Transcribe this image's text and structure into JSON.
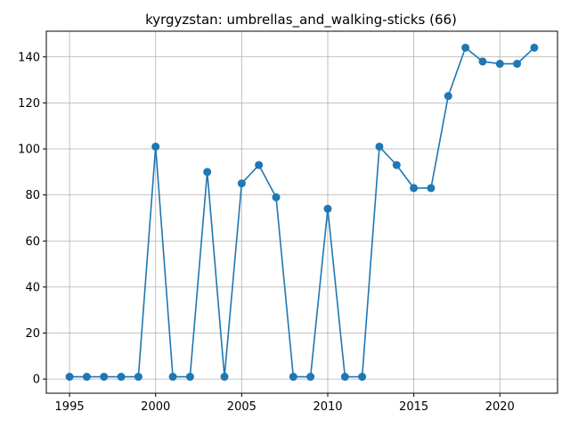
{
  "chart_data": {
    "type": "line",
    "title": "kyrgyzstan: umbrellas_and_walking-sticks (66)",
    "xlabel": "",
    "ylabel": "",
    "x": [
      1995,
      1996,
      1997,
      1998,
      1999,
      2000,
      2001,
      2002,
      2003,
      2004,
      2005,
      2006,
      2007,
      2008,
      2009,
      2010,
      2011,
      2012,
      2013,
      2014,
      2015,
      2016,
      2017,
      2018,
      2019,
      2020,
      2021,
      2022
    ],
    "series": [
      {
        "values": [
          1,
          1,
          1,
          1,
          1,
          101,
          1,
          1,
          90,
          1,
          85,
          93,
          79,
          1,
          1,
          74,
          1,
          1,
          101,
          93,
          83,
          83,
          123,
          144,
          138,
          137,
          137,
          144
        ],
        "color": "#1f77b4"
      }
    ],
    "xlim": [
      1993.65,
      2023.35
    ],
    "ylim": [
      -6.15,
      151.15
    ],
    "xticks": [
      1995,
      2000,
      2005,
      2010,
      2015,
      2020
    ],
    "yticks": [
      0,
      20,
      40,
      60,
      80,
      100,
      120,
      140
    ],
    "grid": true,
    "legend": "none"
  }
}
